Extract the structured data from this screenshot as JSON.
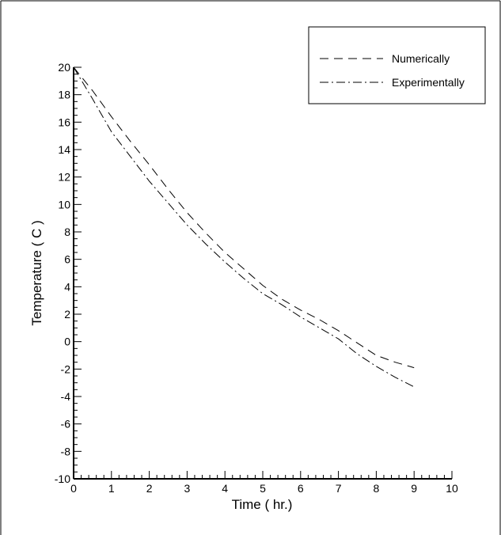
{
  "chart_data": {
    "type": "line",
    "title": "",
    "xlabel": "Time ( hr.)",
    "ylabel": "Temperature ( C )",
    "xlim": [
      0,
      10
    ],
    "ylim": [
      -10,
      20
    ],
    "xticks": [
      "0",
      "1",
      "2",
      "3",
      "4",
      "5",
      "6",
      "7",
      "8",
      "9",
      "10"
    ],
    "yticks": [
      "-10",
      "-8",
      "-6",
      "-4",
      "-2",
      "0",
      "2",
      "4",
      "6",
      "8",
      "10",
      "12",
      "14",
      "16",
      "18",
      "20"
    ],
    "grid": false,
    "legend_position": "top-right",
    "series": [
      {
        "name": "Numerically",
        "style": "dashed",
        "color": "#000000",
        "x": [
          0,
          0.5,
          1,
          1.5,
          2,
          2.5,
          3,
          3.5,
          4,
          4.5,
          5,
          5.5,
          6,
          6.5,
          7,
          7.5,
          8,
          8.5,
          9
        ],
        "y": [
          20,
          18.3,
          16.4,
          14.6,
          12.9,
          11.1,
          9.4,
          7.9,
          6.5,
          5.3,
          4.1,
          3.1,
          2.3,
          1.6,
          0.8,
          -0.1,
          -1.0,
          -1.5,
          -1.9
        ]
      },
      {
        "name": "Experimentally",
        "style": "dash-dot",
        "color": "#000000",
        "x": [
          0,
          0.5,
          1,
          1.5,
          2,
          2.5,
          3,
          3.5,
          4,
          4.5,
          5,
          5.5,
          6,
          6.5,
          7,
          7.5,
          8,
          8.5,
          9
        ],
        "y": [
          20,
          17.7,
          15.3,
          13.5,
          11.7,
          10.1,
          8.5,
          7.1,
          5.8,
          4.6,
          3.5,
          2.7,
          1.8,
          1.0,
          0.2,
          -0.9,
          -1.8,
          -2.6,
          -3.3
        ]
      }
    ]
  }
}
